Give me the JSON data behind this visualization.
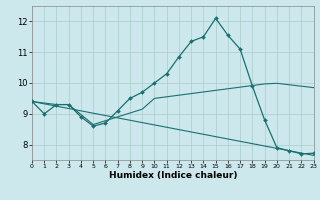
{
  "xlabel": "Humidex (Indice chaleur)",
  "bg_color": "#cce8ec",
  "grid_color": "#aacccc",
  "line_color": "#1a7070",
  "xlim": [
    0,
    23
  ],
  "ylim": [
    7.5,
    12.5
  ],
  "xticks": [
    0,
    1,
    2,
    3,
    4,
    5,
    6,
    7,
    8,
    9,
    10,
    11,
    12,
    13,
    14,
    15,
    16,
    17,
    18,
    19,
    20,
    21,
    22,
    23
  ],
  "yticks": [
    8,
    9,
    10,
    11,
    12
  ],
  "line1_x": [
    0,
    1,
    2,
    3,
    4,
    5,
    6,
    7,
    8,
    9,
    10,
    11,
    12,
    13,
    14,
    15,
    16,
    17,
    18,
    19,
    20,
    21,
    22,
    23
  ],
  "line1_y": [
    9.4,
    9.0,
    9.3,
    9.3,
    8.9,
    8.6,
    8.7,
    9.1,
    9.5,
    9.7,
    10.0,
    10.3,
    10.85,
    11.35,
    11.5,
    12.1,
    11.55,
    11.1,
    9.9,
    8.8,
    7.9,
    7.8,
    7.7,
    7.72
  ],
  "line2_x": [
    0,
    2,
    3,
    5,
    9,
    10,
    19,
    20,
    23
  ],
  "line2_y": [
    9.4,
    9.3,
    9.3,
    8.65,
    9.15,
    9.5,
    9.97,
    9.99,
    9.85
  ],
  "line3_x": [
    0,
    23
  ],
  "line3_y": [
    9.4,
    7.65
  ]
}
